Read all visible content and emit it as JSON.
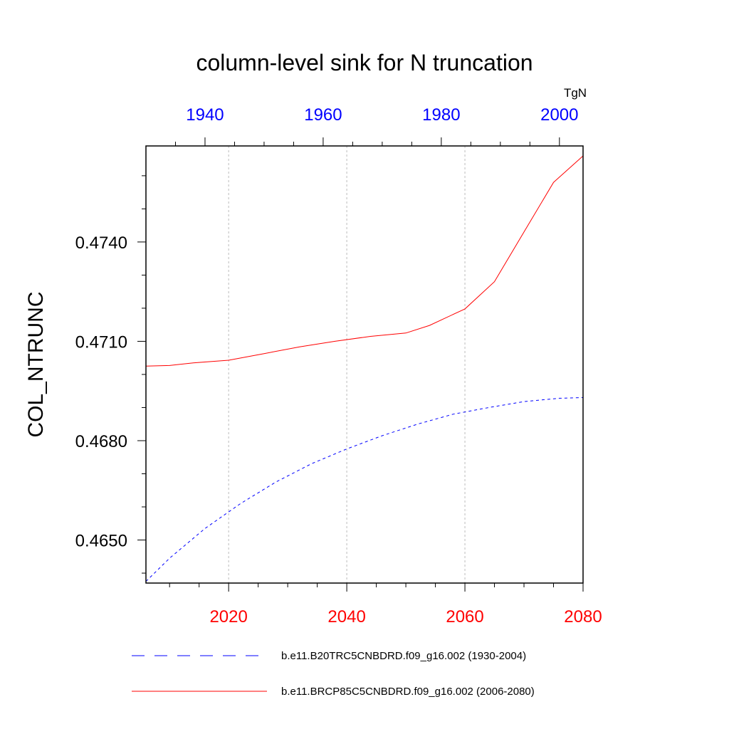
{
  "chart_data": {
    "type": "line",
    "title": "column-level sink for N truncation",
    "ylabel": "COL_NTRUNC",
    "units": "TgN",
    "ylim": [
      0.4637,
      0.4769
    ],
    "y_ticks": [
      0.465,
      0.468,
      0.471,
      0.474
    ],
    "y_tick_labels": [
      "0.4650",
      "0.4680",
      "0.4710",
      "0.4740"
    ],
    "grid": "vertical dashed gridlines",
    "x_bottom": {
      "range": [
        2006,
        2080
      ],
      "ticks": [
        2020,
        2040,
        2060,
        2080
      ],
      "tick_labels": [
        "2020",
        "2040",
        "2060",
        "2080"
      ],
      "color": "#ff0000"
    },
    "x_top": {
      "range": [
        1930,
        2004
      ],
      "ticks": [
        1940,
        1960,
        1980,
        2000
      ],
      "tick_labels": [
        "1940",
        "1960",
        "1980",
        "2000"
      ],
      "color": "#0000ff"
    },
    "series": [
      {
        "name": "b.e11.B20TRC5CNBDRD.f09_g16.002 (1930-2004)",
        "axis": "top",
        "color": "#0000ff",
        "dash": "dashed",
        "x": [
          1930,
          1934,
          1940,
          1946,
          1952,
          1958,
          1964,
          1970,
          1976,
          1982,
          1988,
          1994,
          2000,
          2004
        ],
        "y": [
          0.46375,
          0.46445,
          0.46535,
          0.4661,
          0.46675,
          0.4673,
          0.46775,
          0.46815,
          0.4685,
          0.4688,
          0.469,
          0.46918,
          0.46928,
          0.4693
        ]
      },
      {
        "name": "b.e11.BRCP85C5CNBDRD.f09_g16.002 (2006-2080)",
        "axis": "bottom",
        "color": "#ff0000",
        "dash": "solid",
        "x": [
          2006,
          2010,
          2014,
          2020,
          2026,
          2032,
          2038,
          2044,
          2050,
          2054,
          2060,
          2065,
          2070,
          2075,
          2080
        ],
        "y": [
          0.47025,
          0.47027,
          0.47035,
          0.47043,
          0.47063,
          0.47083,
          0.471,
          0.47115,
          0.47125,
          0.47148,
          0.47198,
          0.4728,
          0.4743,
          0.4758,
          0.4766
        ]
      }
    ]
  }
}
